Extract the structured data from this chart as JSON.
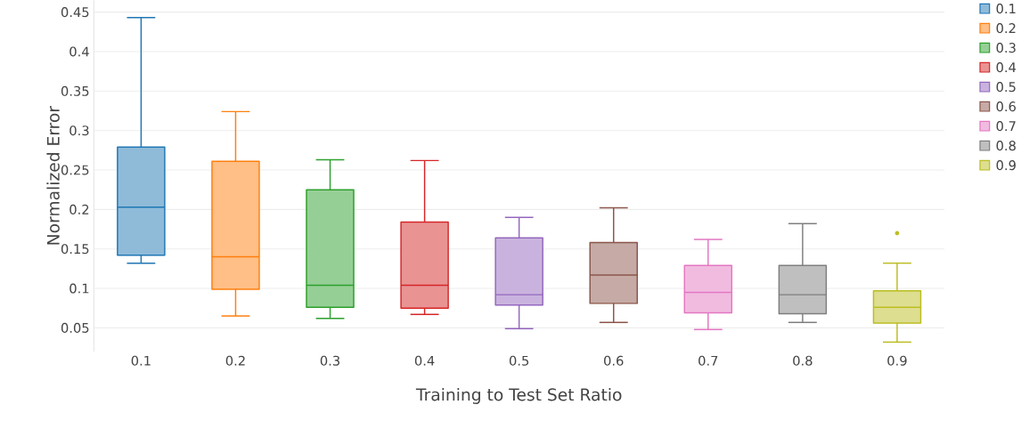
{
  "chart_data": {
    "type": "box",
    "xlabel": "Training to Test Set Ratio",
    "ylabel": "Normalized Error",
    "categories": [
      "0.1",
      "0.2",
      "0.3",
      "0.4",
      "0.5",
      "0.6",
      "0.7",
      "0.8",
      "0.9"
    ],
    "series": [
      {
        "name": "0.1",
        "color": "#1f77b4",
        "x": [
          "0.1"
        ],
        "boxes": [
          {
            "low": 0.132,
            "q1": 0.142,
            "median": 0.203,
            "q3": 0.279,
            "high": 0.443
          }
        ]
      },
      {
        "name": "0.2",
        "color": "#ff7f0e",
        "x": [
          "0.2"
        ],
        "boxes": [
          {
            "low": 0.065,
            "q1": 0.099,
            "median": 0.14,
            "q3": 0.261,
            "high": 0.324
          }
        ]
      },
      {
        "name": "0.3",
        "color": "#2ca02c",
        "x": [
          "0.3"
        ],
        "boxes": [
          {
            "low": 0.062,
            "q1": 0.076,
            "median": 0.104,
            "q3": 0.225,
            "high": 0.263
          }
        ]
      },
      {
        "name": "0.4",
        "color": "#d62728",
        "x": [
          "0.4"
        ],
        "boxes": [
          {
            "low": 0.067,
            "q1": 0.075,
            "median": 0.104,
            "q3": 0.184,
            "high": 0.262
          }
        ]
      },
      {
        "name": "0.5",
        "color": "#9467bd",
        "x": [
          "0.5"
        ],
        "boxes": [
          {
            "low": 0.049,
            "q1": 0.079,
            "median": 0.092,
            "q3": 0.164,
            "high": 0.19
          }
        ]
      },
      {
        "name": "0.6",
        "color": "#8c564b",
        "x": [
          "0.6"
        ],
        "boxes": [
          {
            "low": 0.057,
            "q1": 0.081,
            "median": 0.117,
            "q3": 0.158,
            "high": 0.202
          }
        ]
      },
      {
        "name": "0.7",
        "color": "#e377c2",
        "x": [
          "0.7"
        ],
        "boxes": [
          {
            "low": 0.048,
            "q1": 0.069,
            "median": 0.095,
            "q3": 0.129,
            "high": 0.162
          }
        ]
      },
      {
        "name": "0.8",
        "color": "#7f7f7f",
        "x": [
          "0.8"
        ],
        "boxes": [
          {
            "low": 0.057,
            "q1": 0.068,
            "median": 0.092,
            "q3": 0.129,
            "high": 0.182
          }
        ]
      },
      {
        "name": "0.9",
        "color": "#bcbd22",
        "x": [
          "0.9"
        ],
        "boxes": [
          {
            "low": 0.032,
            "q1": 0.056,
            "median": 0.076,
            "q3": 0.097,
            "high": 0.132,
            "outliers": [
              0.17
            ]
          }
        ]
      }
    ],
    "ylim": [
      0.02,
      0.465
    ],
    "yticks": [
      0.05,
      0.1,
      0.15,
      0.2,
      0.25,
      0.3,
      0.35,
      0.4,
      0.45
    ],
    "grid": "y",
    "legend": "top right"
  }
}
